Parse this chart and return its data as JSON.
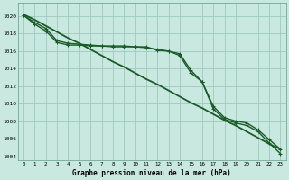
{
  "bg_color": "#c8e8e0",
  "grid_color": "#a0c8c0",
  "line_color": "#1a5c28",
  "xlabel": "Graphe pression niveau de la mer (hPa)",
  "xlim": [
    -0.5,
    23.5
  ],
  "ylim": [
    1003.5,
    1021.5
  ],
  "yticks": [
    1004,
    1006,
    1008,
    1010,
    1012,
    1014,
    1016,
    1018,
    1020
  ],
  "xticks": [
    0,
    1,
    2,
    3,
    4,
    5,
    6,
    7,
    8,
    9,
    10,
    11,
    12,
    13,
    14,
    15,
    16,
    17,
    18,
    19,
    20,
    21,
    22,
    23
  ],
  "series_straight": [
    1020.2,
    1019.6,
    1018.9,
    1018.2,
    1017.5,
    1016.9,
    1016.2,
    1015.5,
    1014.8,
    1014.2,
    1013.5,
    1012.8,
    1012.2,
    1011.5,
    1010.8,
    1010.1,
    1009.5,
    1008.8,
    1008.1,
    1007.5,
    1006.8,
    1006.1,
    1005.4,
    1004.8
  ],
  "series_bump1": [
    1020.1,
    1019.3,
    1018.6,
    1017.2,
    1016.9,
    1016.8,
    1016.7,
    1016.6,
    1016.6,
    1016.6,
    1016.5,
    1016.5,
    1016.1,
    1016.0,
    1015.7,
    1013.8,
    1012.5,
    1009.7,
    1008.4,
    1008.0,
    1007.8,
    1007.0,
    1005.9,
    1004.8
  ],
  "series_bump2": [
    1020.1,
    1019.1,
    1018.3,
    1017.0,
    1016.7,
    1016.7,
    1016.6,
    1016.6,
    1016.5,
    1016.5,
    1016.5,
    1016.4,
    1016.2,
    1016.0,
    1015.5,
    1013.5,
    1012.5,
    1009.4,
    1008.2,
    1007.8,
    1007.5,
    1006.8,
    1005.5,
    1004.3
  ]
}
